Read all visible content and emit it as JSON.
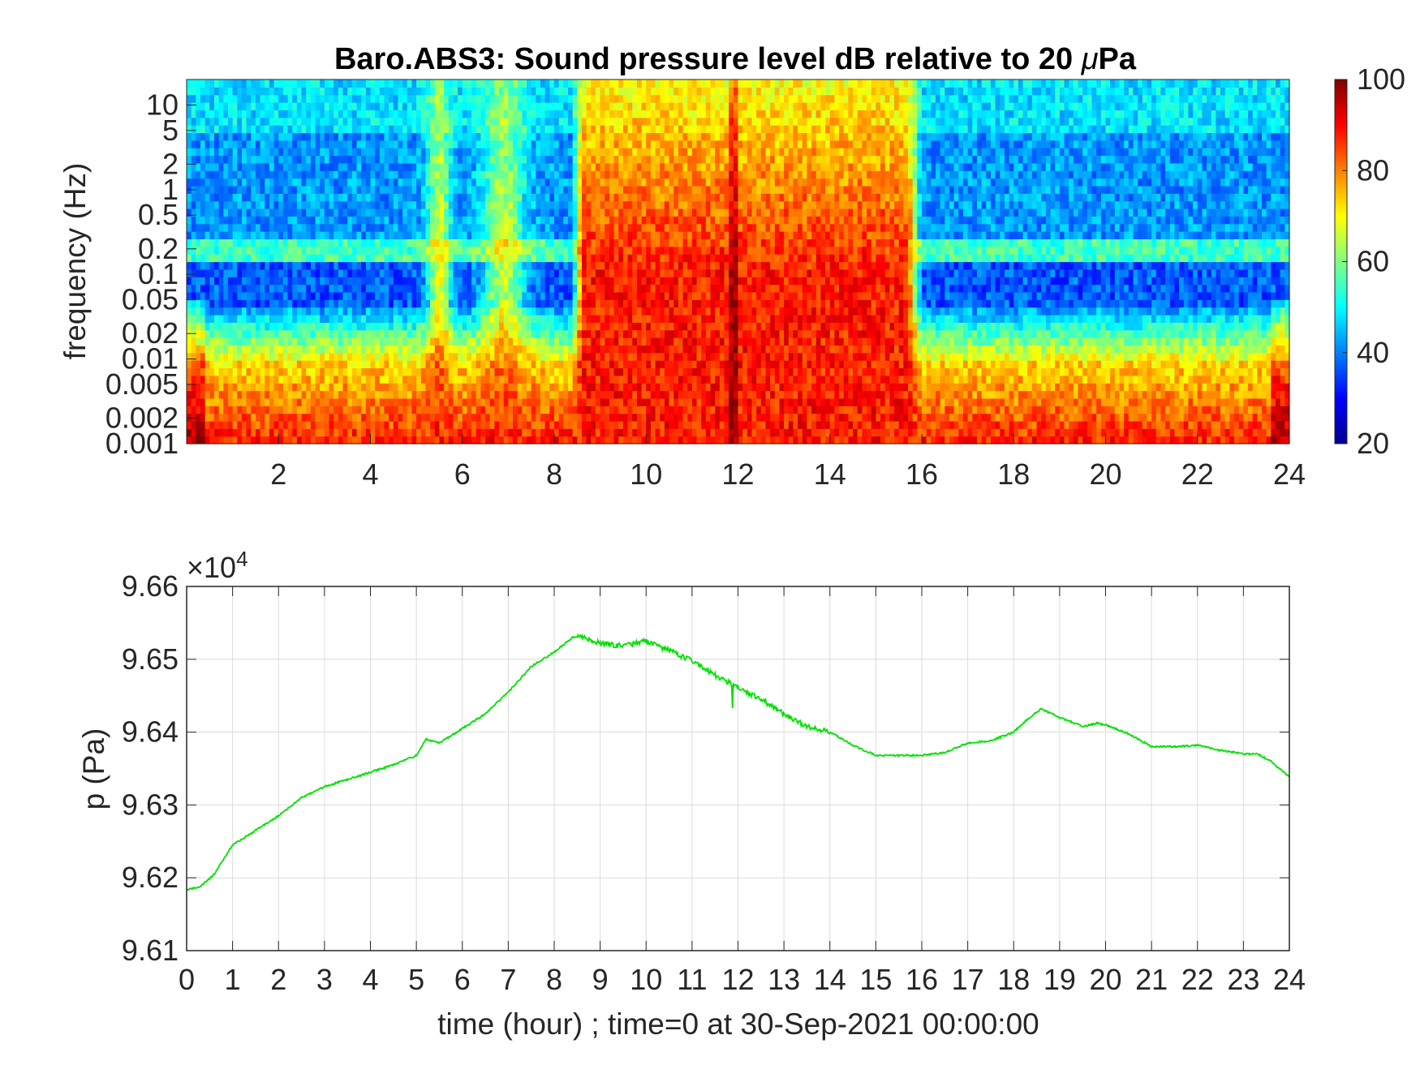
{
  "figure": {
    "title_prefix": "Baro.ABS3: Sound pressure level dB relative to 20 ",
    "title_mu": "μ",
    "title_suffix": "Pa"
  },
  "chart_data": [
    {
      "type": "heatmap",
      "title": "Baro.ABS3: Sound pressure level dB relative to 20 μPa",
      "xlabel": "",
      "ylabel": "frequency (Hz)",
      "xlim": [
        0,
        24
      ],
      "ylim": [
        0.001,
        20
      ],
      "yscale": "log",
      "xticks": [
        2,
        4,
        6,
        8,
        10,
        12,
        14,
        16,
        18,
        20,
        22,
        24
      ],
      "yticks": [
        0.001,
        0.002,
        0.005,
        0.01,
        0.02,
        0.05,
        0.1,
        0.2,
        0.5,
        1,
        2,
        5,
        10
      ],
      "ytick_labels": [
        "0.001",
        "0.002",
        "0.005",
        "0.01",
        "0.02",
        "0.05",
        "0.1",
        "0.2",
        "0.5",
        "1",
        "2",
        "5",
        "10"
      ],
      "colorbar": {
        "min": 20,
        "max": 100,
        "ticks": [
          20,
          40,
          60,
          80,
          100
        ],
        "colormap": "jet"
      },
      "features": [
        {
          "time_range_hours": [
            8.6,
            15.7
          ],
          "peak_level_db": 88,
          "description_level": "high broadband levels"
        },
        {
          "time_hours": 5.5,
          "peak_level_db": 75
        },
        {
          "time_hours": 6.9,
          "peak_level_db": 72
        },
        {
          "time_hours": 11.9,
          "peak_level_db": 98
        }
      ],
      "background_levels_db": [
        {
          "freq_range_hz": [
            5,
            20
          ],
          "level_db": 47
        },
        {
          "freq_range_hz": [
            0.2,
            5
          ],
          "level_db": 42
        },
        {
          "freq_range_hz": [
            0.18,
            0.25
          ],
          "level_db": 55
        },
        {
          "freq_range_hz": [
            0.04,
            0.15
          ],
          "level_db": 38
        },
        {
          "freq_range_hz": [
            0.01,
            0.04
          ],
          "level_db": 55
        },
        {
          "freq_range_hz": [
            0.001,
            0.01
          ],
          "level_db": 85
        }
      ]
    },
    {
      "type": "line",
      "xlabel": "time (hour) ; time=0 at 30-Sep-2021 00:00:00",
      "ylabel": "p (Pa)",
      "exponent_label": "×10",
      "exponent_power": "4",
      "xlim": [
        0,
        24
      ],
      "ylim": [
        9.61,
        9.66
      ],
      "xticks": [
        0,
        1,
        2,
        3,
        4,
        5,
        6,
        7,
        8,
        9,
        10,
        11,
        12,
        13,
        14,
        15,
        16,
        17,
        18,
        19,
        20,
        21,
        22,
        23,
        24
      ],
      "yticks": [
        9.61,
        9.62,
        9.63,
        9.64,
        9.65,
        9.66
      ],
      "ytick_labels": [
        "9.61",
        "9.62",
        "9.63",
        "9.64",
        "9.65",
        "9.66"
      ],
      "grid": true,
      "color": "#00e000",
      "x": [
        0,
        0.3,
        0.6,
        1.0,
        1.5,
        2.0,
        2.5,
        3.0,
        3.5,
        4.0,
        4.5,
        5.0,
        5.2,
        5.5,
        6.0,
        6.5,
        7.0,
        7.5,
        8.0,
        8.4,
        8.6,
        9.0,
        9.5,
        10.0,
        10.5,
        11.0,
        11.5,
        11.8,
        12.0,
        12.5,
        13.0,
        13.5,
        14.0,
        14.5,
        15.0,
        15.5,
        16.0,
        16.5,
        17.0,
        17.5,
        18.0,
        18.3,
        18.6,
        19.0,
        19.5,
        19.8,
        20.0,
        20.5,
        21.0,
        21.5,
        22.0,
        22.5,
        23.0,
        23.3,
        23.6,
        24.0
      ],
      "y": [
        9.6183,
        9.6188,
        9.6205,
        9.6245,
        9.6265,
        9.6285,
        9.631,
        9.6325,
        9.6335,
        9.6345,
        9.6355,
        9.6368,
        9.639,
        9.6385,
        9.6405,
        9.6425,
        9.6455,
        9.649,
        9.651,
        9.653,
        9.6532,
        9.6522,
        9.6518,
        9.6525,
        9.6512,
        9.6498,
        9.6478,
        9.6468,
        9.646,
        9.6445,
        9.6425,
        9.6408,
        9.64,
        9.6382,
        9.6368,
        9.6368,
        9.6368,
        9.6372,
        9.6385,
        9.6388,
        9.64,
        9.6418,
        9.6432,
        9.642,
        9.6408,
        9.6412,
        9.641,
        9.6398,
        9.638,
        9.638,
        9.6382,
        9.6375,
        9.637,
        9.637,
        9.636,
        9.6338
      ]
    }
  ]
}
